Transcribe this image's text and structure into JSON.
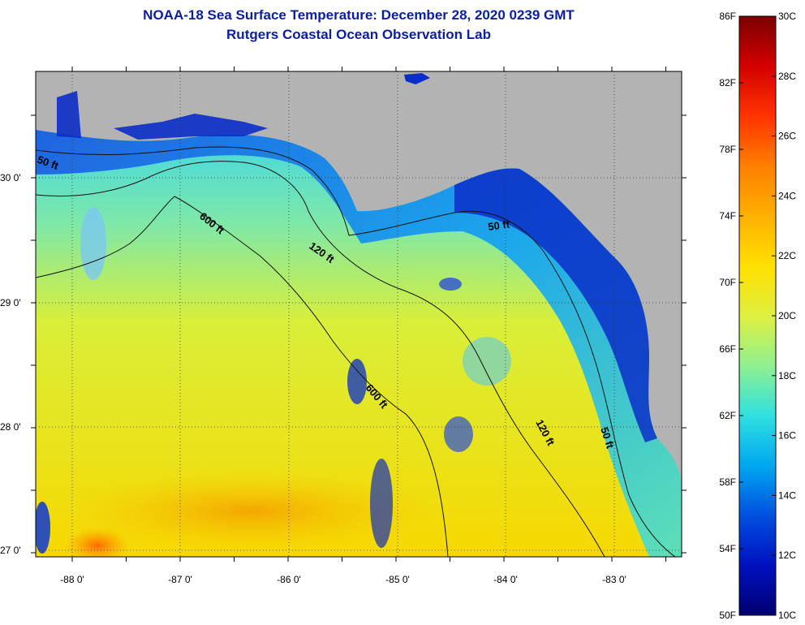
{
  "title": {
    "line1": "NOAA-18 Sea Surface Temperature:  December 28, 2020 0239 GMT",
    "line2": "Rutgers Coastal Ocean Observation Lab"
  },
  "map": {
    "land_color": "#b3b3b3",
    "grid": "dotted",
    "lat_labels": [
      "30 0'",
      "29 0'",
      "28 0'",
      "27 0'"
    ],
    "lon_labels": [
      "-88 0'",
      "-87 0'",
      "-86 0'",
      "-85 0'",
      "-84 0'",
      "-83 0'"
    ],
    "contours": [
      {
        "name": "50 ft",
        "labels": [
          "50 ft",
          "50 ft",
          "50 ft"
        ]
      },
      {
        "name": "120 ft",
        "labels": [
          "120 ft",
          "120 ft"
        ]
      },
      {
        "name": "600 ft",
        "labels": [
          "600 ft",
          "600 ft"
        ]
      }
    ]
  },
  "colorbar": {
    "fahrenheit_labels": [
      "86F",
      "82F",
      "78F",
      "74F",
      "70F",
      "66F",
      "62F",
      "58F",
      "54F",
      "50F"
    ],
    "celsius_labels": [
      "30C",
      "28C",
      "26C",
      "24C",
      "22C",
      "20C",
      "18C",
      "16C",
      "14C",
      "12C",
      "10C"
    ],
    "colors": [
      "#7a0000",
      "#d40000",
      "#ff3300",
      "#ff7f00",
      "#ffb000",
      "#ffe000",
      "#e0f040",
      "#90f090",
      "#30e0e0",
      "#00a8f0",
      "#0050e0",
      "#0010c0",
      "#000070"
    ]
  }
}
